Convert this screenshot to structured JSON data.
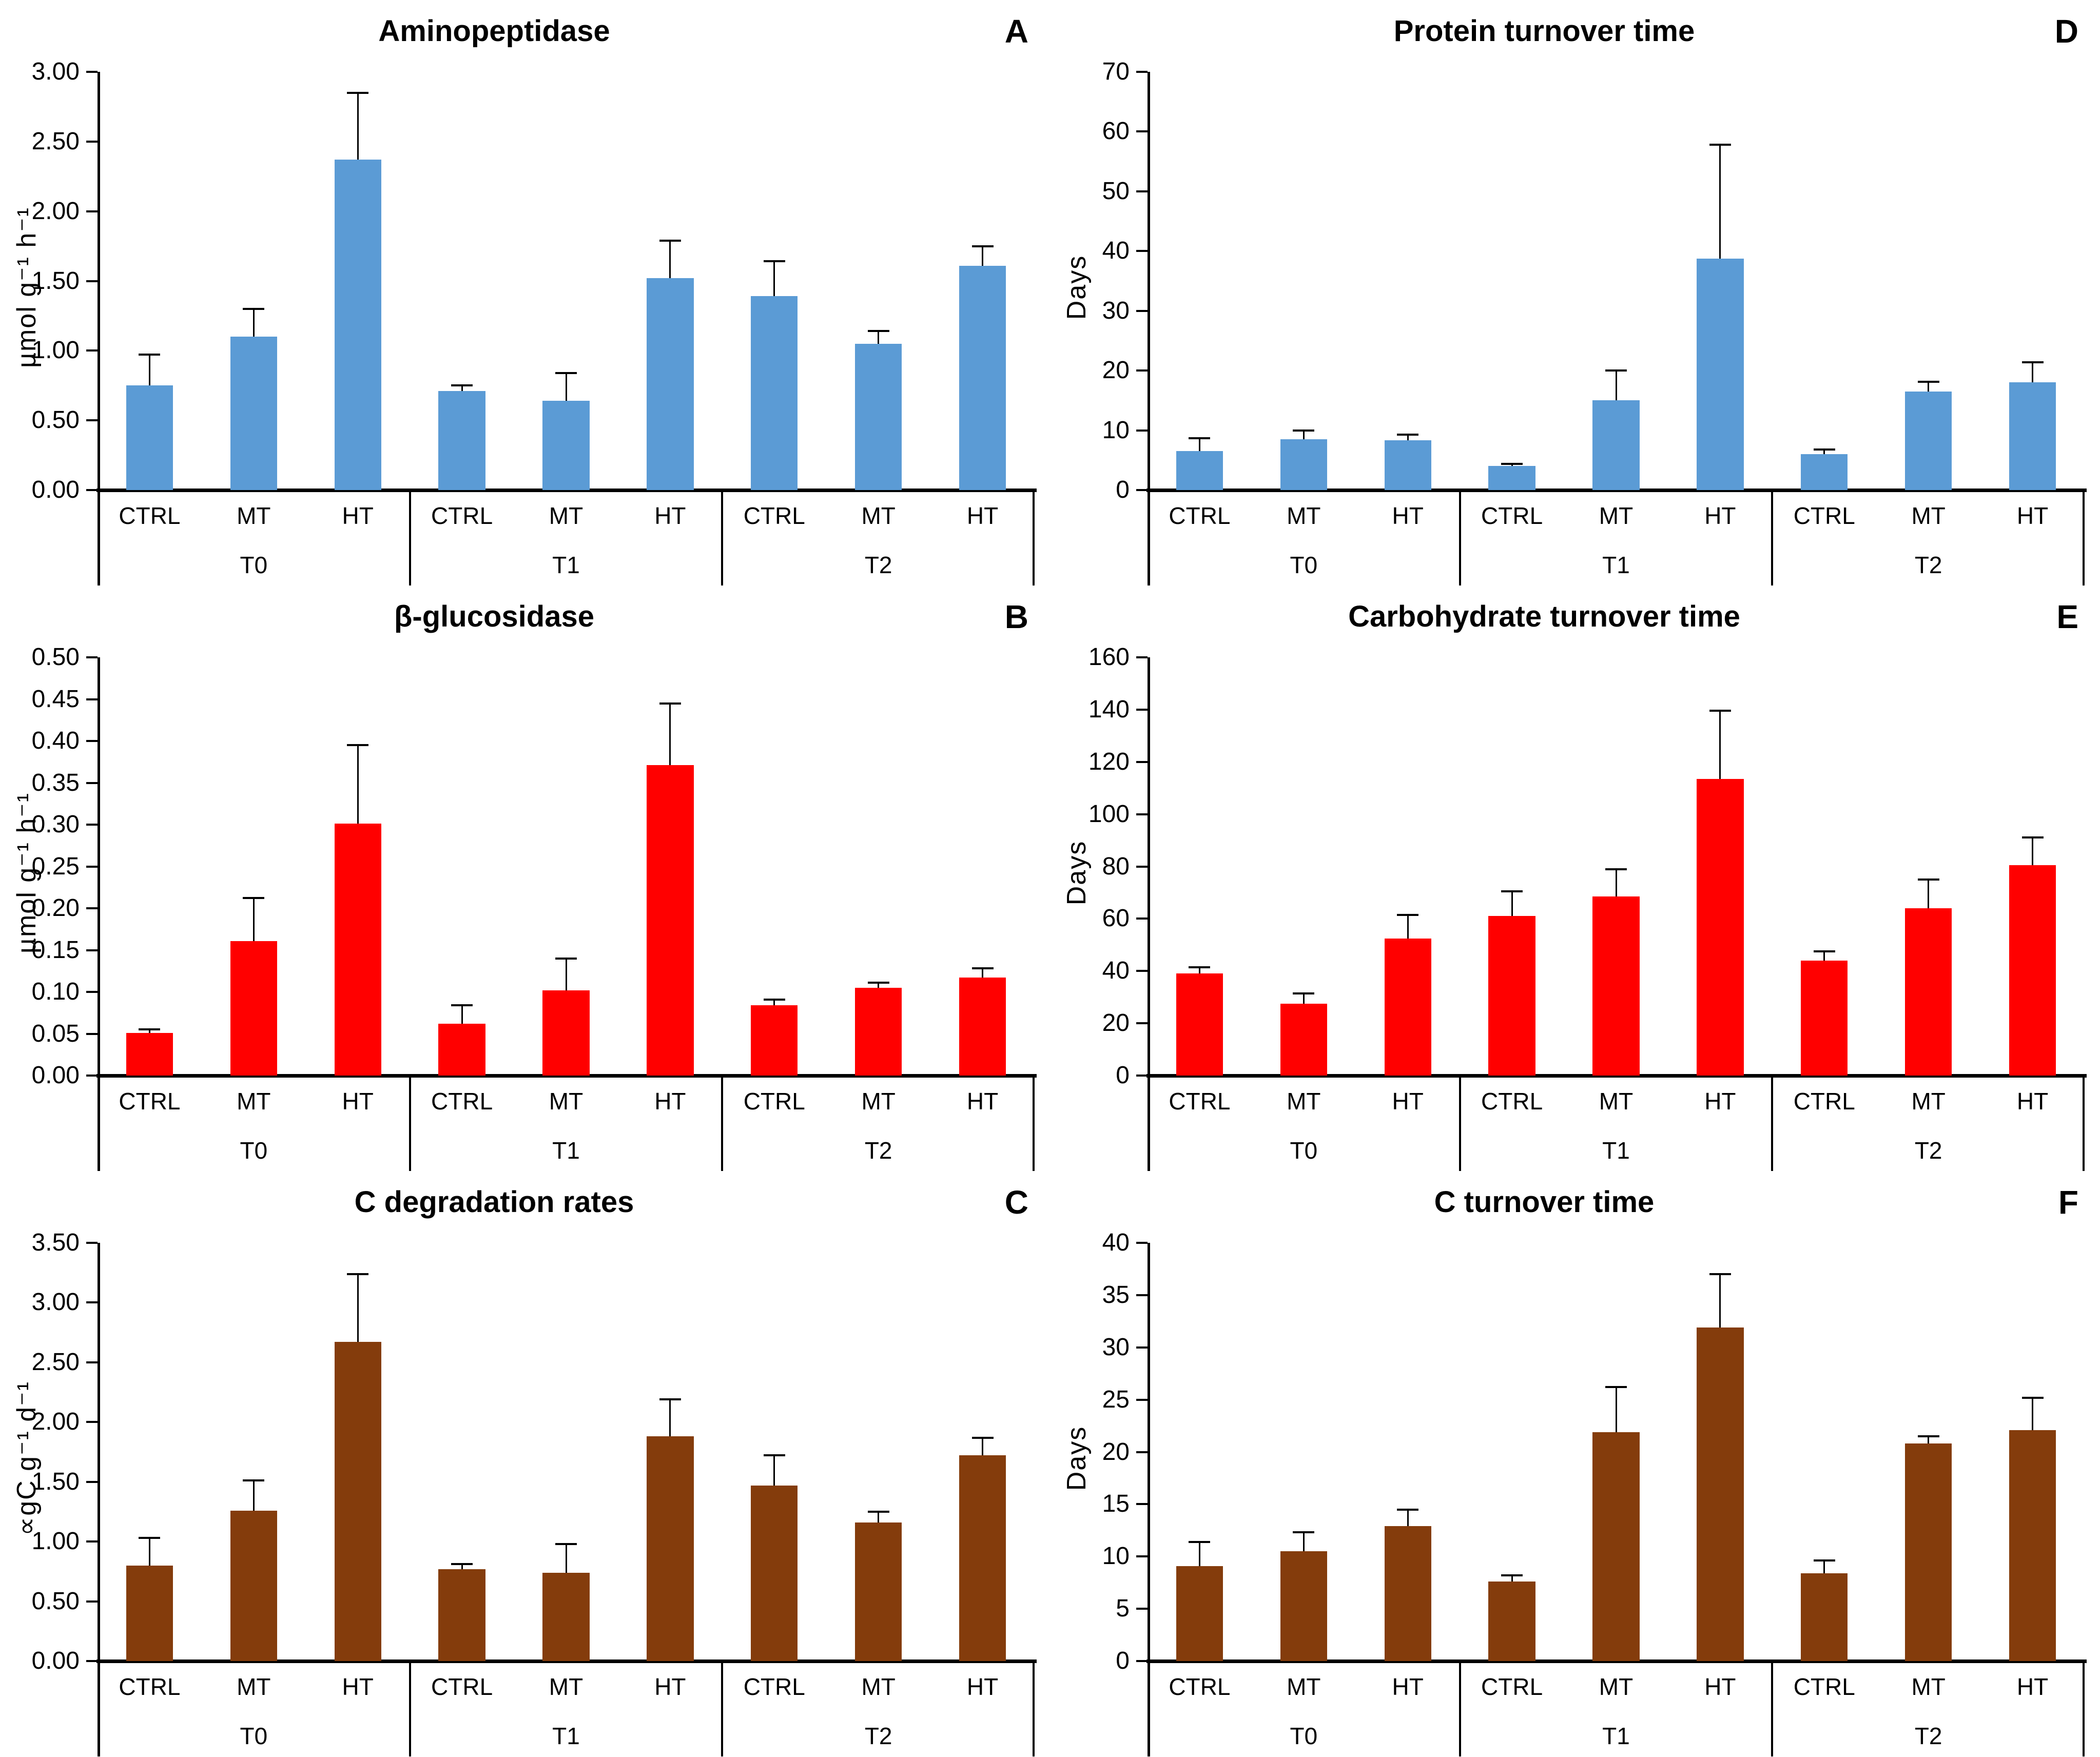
{
  "figure": {
    "treatments": [
      "CTRL",
      "MT",
      "HT"
    ],
    "timepoints": [
      "T0",
      "T1",
      "T2"
    ],
    "colors": {
      "blue": "#5B9BD5",
      "red": "#FF0000",
      "brown": "#843C0C",
      "error_bar": "#000000"
    }
  },
  "chart_data": [
    {
      "type": "bar",
      "panel_letter": "A",
      "title": "Aminopeptidase",
      "ylabel": "µmol g⁻¹ h⁻¹",
      "ylim": [
        0,
        3.0
      ],
      "ystep": 0.5,
      "tick_decimals": 2,
      "bar_color": "#5B9BD5",
      "grid": false,
      "legend": "none",
      "categories": [
        "CTRL",
        "MT",
        "HT",
        "CTRL",
        "MT",
        "HT",
        "CTRL",
        "MT",
        "HT"
      ],
      "group_labels": [
        "T0",
        "T1",
        "T2"
      ],
      "values": [
        0.75,
        1.1,
        2.37,
        0.71,
        0.64,
        1.52,
        1.39,
        1.05,
        1.61
      ],
      "errors": [
        0.22,
        0.2,
        0.48,
        0.04,
        0.2,
        0.27,
        0.25,
        0.09,
        0.14
      ]
    },
    {
      "type": "bar",
      "panel_letter": "D",
      "title": "Protein turnover time",
      "ylabel": "Days",
      "ylim": [
        0,
        70
      ],
      "ystep": 10,
      "tick_decimals": 0,
      "bar_color": "#5B9BD5",
      "grid": false,
      "legend": "none",
      "categories": [
        "CTRL",
        "MT",
        "HT",
        "CTRL",
        "MT",
        "HT",
        "CTRL",
        "MT",
        "HT"
      ],
      "group_labels": [
        "T0",
        "T1",
        "T2"
      ],
      "values": [
        6.5,
        8.5,
        8.3,
        4.0,
        15.0,
        38.7,
        6.0,
        16.5,
        18.0
      ],
      "errors": [
        2.2,
        1.5,
        1.0,
        0.4,
        5.0,
        19.1,
        0.8,
        1.6,
        3.4
      ]
    },
    {
      "type": "bar",
      "panel_letter": "B",
      "title": "β-glucosidase",
      "ylabel": "µmol g⁻¹ h⁻¹",
      "ylim": [
        0,
        0.5
      ],
      "ystep": 0.05,
      "tick_decimals": 2,
      "bar_color": "#FF0000",
      "grid": false,
      "legend": "none",
      "categories": [
        "CTRL",
        "MT",
        "HT",
        "CTRL",
        "MT",
        "HT",
        "CTRL",
        "MT",
        "HT"
      ],
      "group_labels": [
        "T0",
        "T1",
        "T2"
      ],
      "values": [
        0.051,
        0.161,
        0.301,
        0.062,
        0.102,
        0.371,
        0.084,
        0.105,
        0.117
      ],
      "errors": [
        0.004,
        0.051,
        0.094,
        0.022,
        0.038,
        0.074,
        0.007,
        0.006,
        0.011
      ]
    },
    {
      "type": "bar",
      "panel_letter": "E",
      "title": "Carbohydrate turnover time",
      "ylabel": "Days",
      "ylim": [
        0,
        160
      ],
      "ystep": 20,
      "tick_decimals": 0,
      "bar_color": "#FF0000",
      "grid": false,
      "legend": "none",
      "categories": [
        "CTRL",
        "MT",
        "HT",
        "CTRL",
        "MT",
        "HT",
        "CTRL",
        "MT",
        "HT"
      ],
      "group_labels": [
        "T0",
        "T1",
        "T2"
      ],
      "values": [
        39.0,
        27.5,
        52.5,
        61.0,
        68.5,
        113.5,
        44.0,
        64.0,
        80.5
      ],
      "errors": [
        2.5,
        4.0,
        9.0,
        9.5,
        10.5,
        26.0,
        3.5,
        11.0,
        10.5
      ]
    },
    {
      "type": "bar",
      "panel_letter": "C",
      "title": "C degradation rates",
      "ylabel": "∝gC g⁻¹ d⁻¹",
      "ylim": [
        0,
        3.5
      ],
      "ystep": 0.5,
      "tick_decimals": 2,
      "bar_color": "#843C0C",
      "grid": false,
      "legend": "none",
      "categories": [
        "CTRL",
        "MT",
        "HT",
        "CTRL",
        "MT",
        "HT",
        "CTRL",
        "MT",
        "HT"
      ],
      "group_labels": [
        "T0",
        "T1",
        "T2"
      ],
      "values": [
        0.8,
        1.26,
        2.67,
        0.77,
        0.74,
        1.88,
        1.47,
        1.16,
        1.72
      ],
      "errors": [
        0.23,
        0.25,
        0.57,
        0.04,
        0.24,
        0.31,
        0.25,
        0.09,
        0.15
      ]
    },
    {
      "type": "bar",
      "panel_letter": "F",
      "title": "C turnover time",
      "ylabel": "Days",
      "ylim": [
        0,
        40
      ],
      "ystep": 5,
      "tick_decimals": 0,
      "bar_color": "#843C0C",
      "grid": false,
      "legend": "none",
      "categories": [
        "CTRL",
        "MT",
        "HT",
        "CTRL",
        "MT",
        "HT",
        "CTRL",
        "MT",
        "HT"
      ],
      "group_labels": [
        "T0",
        "T1",
        "T2"
      ],
      "values": [
        9.1,
        10.5,
        12.9,
        7.6,
        21.9,
        31.9,
        8.4,
        20.8,
        22.1
      ],
      "errors": [
        2.3,
        1.8,
        1.6,
        0.6,
        4.3,
        5.1,
        1.2,
        0.7,
        3.1
      ]
    }
  ]
}
